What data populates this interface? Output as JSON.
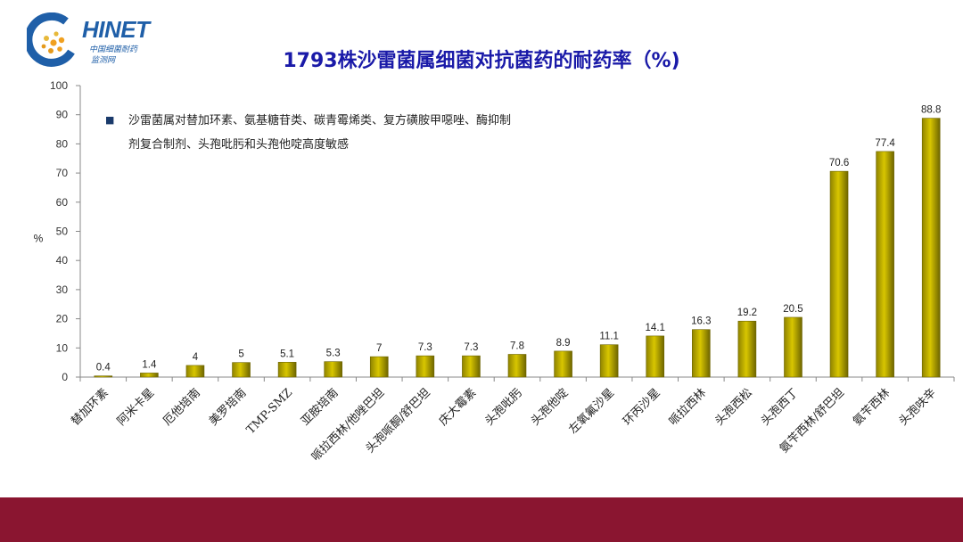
{
  "logo": {
    "name": "HINET",
    "sub1": "中国细菌耐药",
    "sub2": "监测网"
  },
  "colors": {
    "bar": "#d8c600",
    "bar_edge": "#6e6500",
    "title": "#1a1aa8",
    "footer": "#8a1530",
    "note_bullet": "#1a3a6b"
  },
  "chart_data": {
    "type": "bar",
    "title": "1793株沙雷菌属细菌对抗菌药的耐药率（%)",
    "xlabel": "",
    "ylabel": "%",
    "ylim": [
      0,
      100
    ],
    "yticks": [
      0,
      10,
      20,
      30,
      40,
      50,
      60,
      70,
      80,
      90,
      100
    ],
    "grid": false,
    "categories": [
      "替加环素",
      "阿米卡星",
      "厄他培南",
      "美罗培南",
      "TMP-SMZ",
      "亚胺培南",
      "哌拉西林/他唑巴坦",
      "头孢哌酮/舒巴坦",
      "庆大霉素",
      "头孢吡肟",
      "头孢他啶",
      "左氧氟沙星",
      "环丙沙星",
      "哌拉西林",
      "头孢西松",
      "头孢西丁",
      "氨苄西林/舒巴坦",
      "氨苄西林",
      "头孢呋辛"
    ],
    "values": [
      0.4,
      1.4,
      4,
      5,
      5.1,
      5.3,
      7,
      7.3,
      7.3,
      7.8,
      8.9,
      11.1,
      14.1,
      16.3,
      19.2,
      20.5,
      70.6,
      77.4,
      88.8
    ],
    "data_labels": [
      "0.4",
      "1.4",
      "4",
      "5",
      "5.1",
      "5.3",
      "7",
      "7.3",
      "7.3",
      "7.8",
      "8.9",
      "11.1",
      "14.1",
      "16.3",
      "19.2",
      "20.5",
      "70.6",
      "77.4",
      "88.8"
    ],
    "annotation": {
      "bullet": "■",
      "line1": "沙雷菌属对替加环素、氨基糖苷类、碳青霉烯类、复方磺胺甲噁唑、酶抑制",
      "line2": "剂复合制剂、头孢吡肟和头孢他啶高度敏感"
    }
  }
}
